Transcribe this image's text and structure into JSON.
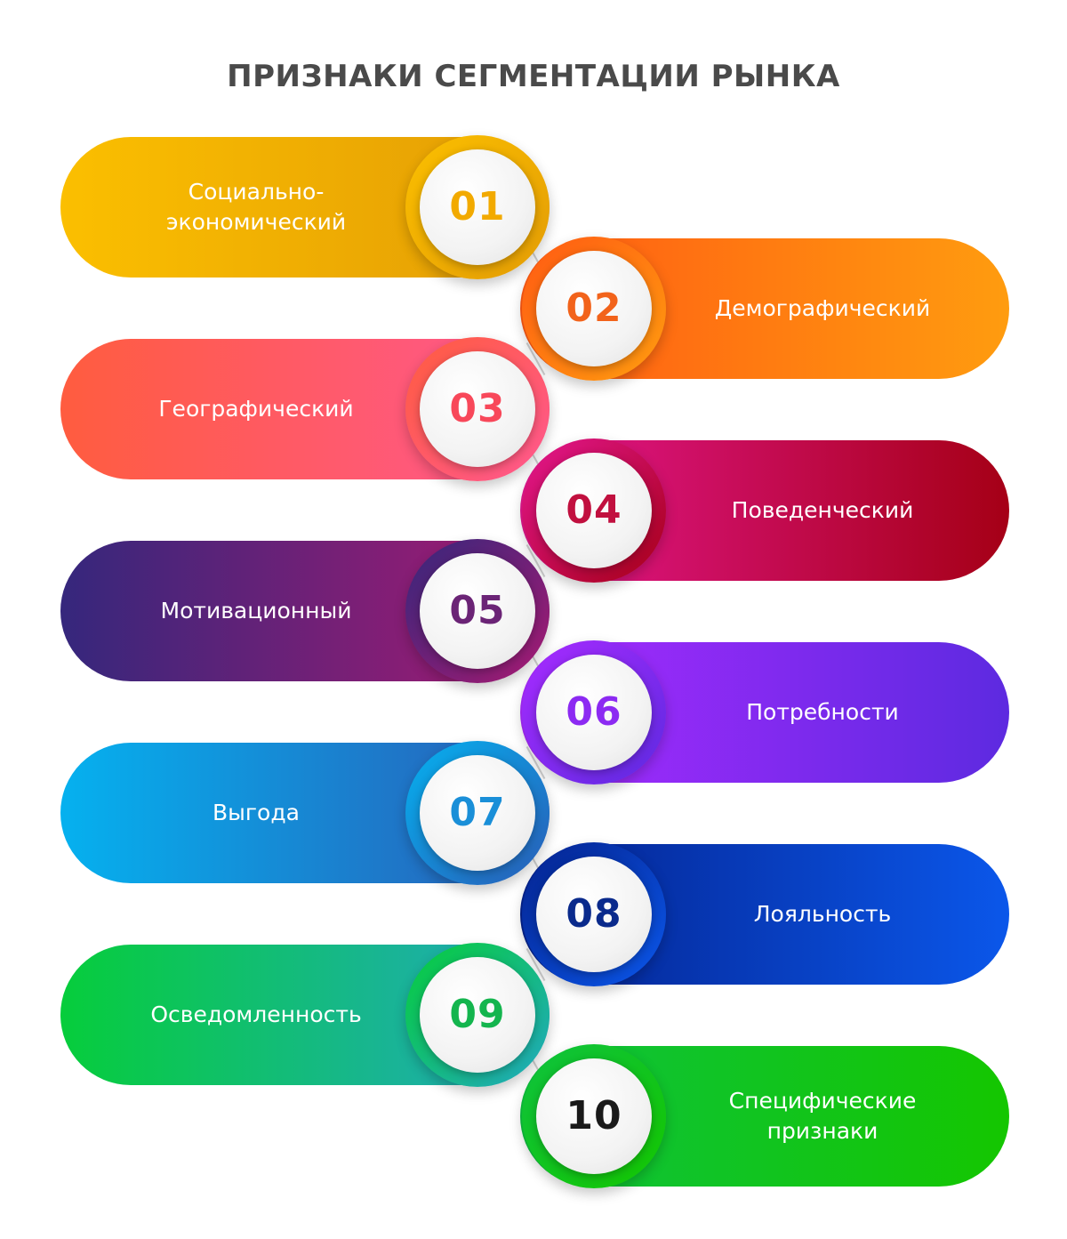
{
  "title": "ПРИЗНАКИ СЕГМЕНТАЦИИ РЫНКА",
  "items": [
    {
      "number": "01",
      "label": "Социально-\nэкономический",
      "side": "left",
      "colors": [
        "#fbbf00",
        "#e39c05"
      ],
      "number_color": "#f2aa00"
    },
    {
      "number": "02",
      "label": "Демографический",
      "side": "right",
      "colors": [
        "#ff5a13",
        "#ff9c0f"
      ],
      "number_color": "#f2631b"
    },
    {
      "number": "03",
      "label": "Географический",
      "side": "left",
      "colors": [
        "#ff5c3f",
        "#ff5890"
      ],
      "number_color": "#f8485a"
    },
    {
      "number": "04",
      "label": "Поведенческий",
      "side": "right",
      "colors": [
        "#e4178f",
        "#a50016"
      ],
      "number_color": "#c1103f"
    },
    {
      "number": "05",
      "label": "Мотивационный",
      "side": "left",
      "colors": [
        "#35277c",
        "#a81a72"
      ],
      "number_color": "#6b2476"
    },
    {
      "number": "06",
      "label": "Потребности",
      "side": "right",
      "colors": [
        "#a82bff",
        "#5d2ae0"
      ],
      "number_color": "#8c2af2"
    },
    {
      "number": "07",
      "label": "Выгода",
      "side": "left",
      "colors": [
        "#05b1ef",
        "#2a5cb6"
      ],
      "number_color": "#1a8fd8"
    },
    {
      "number": "08",
      "label": "Лояльность",
      "side": "right",
      "colors": [
        "#04228e",
        "#0b57ea"
      ],
      "number_color": "#0a2a8c"
    },
    {
      "number": "09",
      "label": "Осведомленность",
      "side": "left",
      "colors": [
        "#06cd3b",
        "#22a8c0"
      ],
      "number_color": "#14b54e"
    },
    {
      "number": "10",
      "label": "Специфические\nпризнаки",
      "side": "right",
      "colors": [
        "#0ec23e",
        "#14c600"
      ],
      "number_color": "#1a1a1a"
    }
  ]
}
